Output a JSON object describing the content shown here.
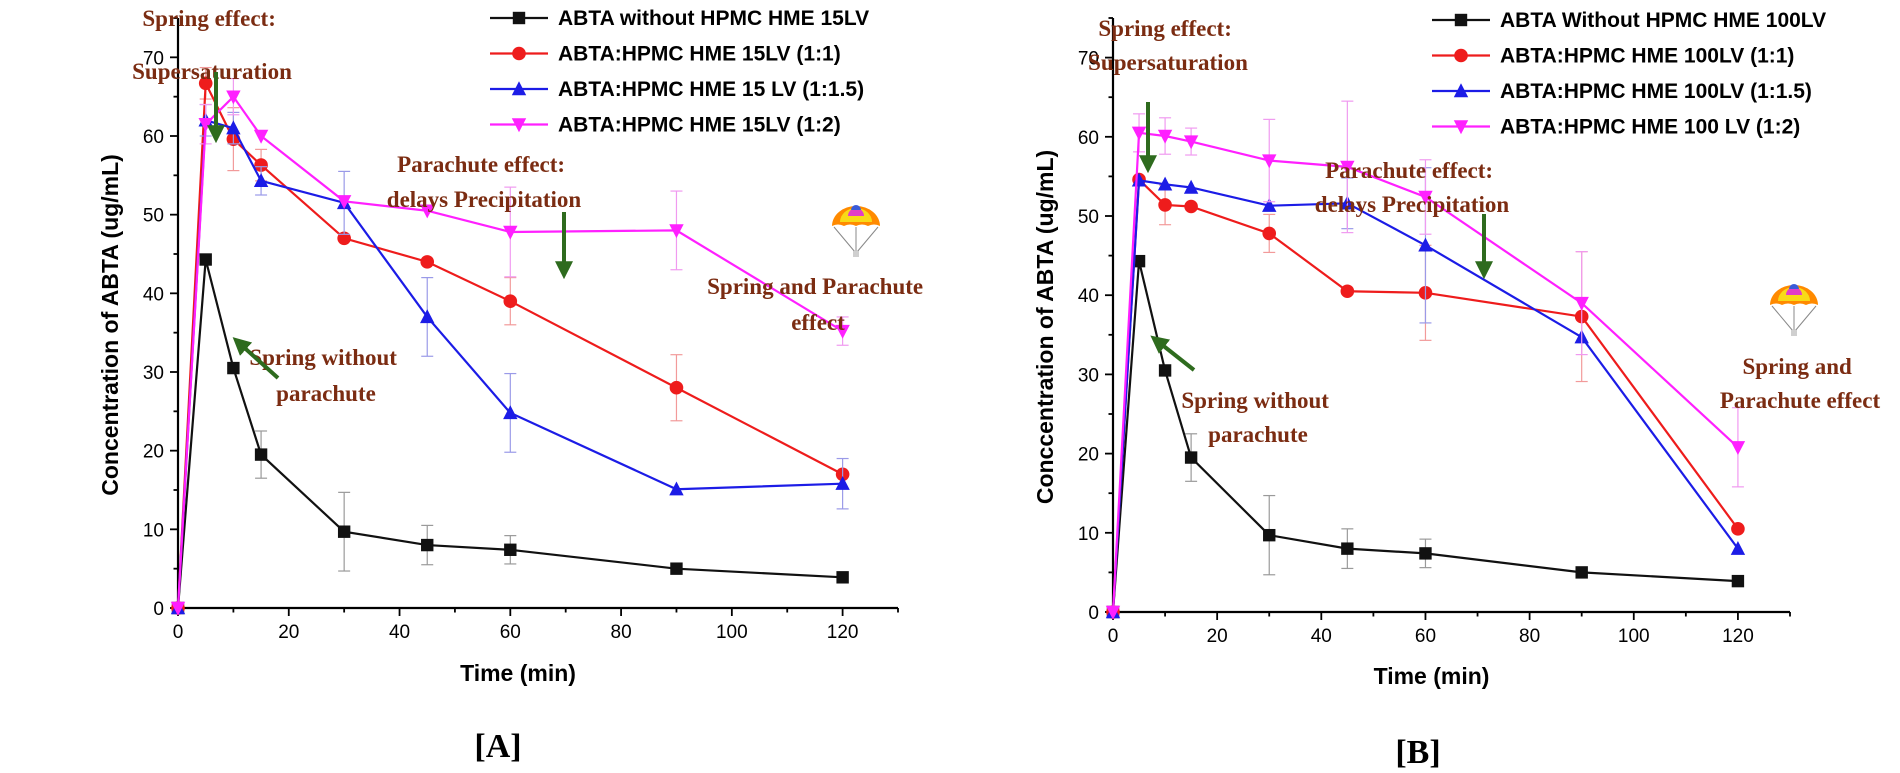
{
  "figure": {
    "colors": {
      "black": "#111111",
      "red": "#ee1c1c",
      "blue": "#1c1ce6",
      "magenta": "#ff20ff",
      "arrow": "#2e6b1e",
      "annotation": "#7b2c12",
      "error_black": "#9a9a9a",
      "error_red": "#f29a9a",
      "error_blue": "#9a9ae8",
      "error_magenta": "#f09af0"
    }
  },
  "chart_data": [
    {
      "panel": "A",
      "type": "line",
      "panel_label": "[A]",
      "xlabel": "Time (min)",
      "ylabel": "Concentration of ABTA (ug/mL)",
      "xlim": [
        0,
        130
      ],
      "ylim": [
        0,
        75
      ],
      "xticks": [
        0,
        20,
        40,
        60,
        80,
        100,
        120
      ],
      "yticks": [
        0,
        10,
        20,
        30,
        40,
        50,
        60,
        70
      ],
      "xtick_labels": [
        "0",
        "20",
        "40",
        "60",
        "80",
        "100",
        "120"
      ],
      "ytick_labels": [
        "0",
        "10",
        "20",
        "30",
        "40",
        "50",
        "60",
        "70"
      ],
      "legend_position": "top-right",
      "x": [
        0,
        5,
        10,
        15,
        30,
        45,
        60,
        90,
        120
      ],
      "series": [
        {
          "name": "ABTA without HPMC HME 15LV",
          "color": "black",
          "marker": "square",
          "values": [
            0,
            44.3,
            30.5,
            19.5,
            9.7,
            8.0,
            7.4,
            5.0,
            3.9
          ],
          "errors": [
            0,
            0,
            0,
            3.0,
            5.0,
            2.5,
            1.8,
            0,
            0
          ]
        },
        {
          "name": "ABTA:HPMC HME 15LV (1:1)",
          "color": "red",
          "marker": "circle",
          "values": [
            0,
            66.7,
            59.6,
            56.3,
            47.0,
            44.0,
            39.0,
            28.0,
            17.0
          ],
          "errors": [
            0,
            2.0,
            4.0,
            2.0,
            0,
            0,
            3.0,
            4.2,
            0
          ]
        },
        {
          "name": "ABTA:HPMC HME 15 LV (1:1.5)",
          "color": "blue",
          "marker": "triangle-up",
          "values": [
            0,
            62.0,
            61.0,
            54.3,
            51.5,
            37.0,
            24.8,
            15.1,
            15.8
          ],
          "errors": [
            0,
            2.0,
            2.0,
            1.8,
            4.0,
            5.0,
            5.0,
            0,
            3.2
          ]
        },
        {
          "name": "ABTA:HPMC HME 15LV (1:2)",
          "color": "magenta",
          "marker": "triangle-down",
          "values": [
            0,
            61.5,
            65.0,
            60.0,
            51.7,
            50.5,
            47.8,
            48.0,
            35.2
          ],
          "errors": [
            0,
            2.5,
            2.3,
            0,
            0,
            0,
            5.7,
            5.0,
            1.8
          ]
        }
      ],
      "annotations": [
        {
          "lines": [
            "Spring effect:",
            "Supersaturation"
          ]
        },
        {
          "lines": [
            "Parachute effect:",
            "delays Precipitation"
          ]
        },
        {
          "lines": [
            "Spring without",
            "parachute"
          ]
        },
        {
          "lines": [
            "Spring and Parachute",
            "effect"
          ]
        }
      ]
    },
    {
      "panel": "B",
      "type": "line",
      "panel_label": "[B]",
      "xlabel": "Time (min)",
      "ylabel": "Conccentration of ABTA (ug/mL)",
      "xlim": [
        0,
        130
      ],
      "ylim": [
        0,
        75
      ],
      "xticks": [
        0,
        20,
        40,
        60,
        80,
        100,
        120
      ],
      "yticks": [
        0,
        10,
        20,
        30,
        40,
        50,
        60,
        70
      ],
      "xtick_labels": [
        "0",
        "20",
        "40",
        "60",
        "80",
        "100",
        "120"
      ],
      "ytick_labels": [
        "0",
        "10",
        "20",
        "30",
        "40",
        "50",
        "60",
        "70"
      ],
      "legend_position": "top-right",
      "x": [
        0,
        5,
        10,
        15,
        30,
        45,
        60,
        90,
        120
      ],
      "series": [
        {
          "name": "ABTA Without HPMC HME 100LV",
          "color": "black",
          "marker": "square",
          "values": [
            0,
            44.3,
            30.5,
            19.5,
            9.7,
            8.0,
            7.4,
            5.0,
            3.9
          ],
          "errors": [
            0,
            0,
            0,
            3.0,
            5.0,
            2.5,
            1.8,
            0,
            0
          ]
        },
        {
          "name": "ABTA:HPMC HME 100LV (1:1)",
          "color": "red",
          "marker": "circle",
          "values": [
            0,
            54.6,
            51.4,
            51.2,
            47.8,
            40.5,
            40.3,
            37.3,
            10.5
          ],
          "errors": [
            0,
            0,
            2.5,
            0,
            2.4,
            0,
            6.0,
            8.2,
            0
          ]
        },
        {
          "name": "ABTA:HPMC HME 100LV (1:1.5)",
          "color": "blue",
          "marker": "triangle-up",
          "values": [
            0,
            54.5,
            54.0,
            53.6,
            51.3,
            51.6,
            46.3,
            34.7,
            8.0
          ],
          "errors": [
            0,
            0,
            0,
            0,
            0,
            3.2,
            9.8,
            0,
            0
          ]
        },
        {
          "name": "ABTA:HPMC HME 100 LV (1:2)",
          "color": "magenta",
          "marker": "triangle-down",
          "values": [
            0,
            60.5,
            60.1,
            59.4,
            57.0,
            56.2,
            52.4,
            39.0,
            20.8
          ],
          "errors": [
            0,
            2.4,
            2.3,
            1.7,
            5.2,
            8.3,
            4.7,
            6.5,
            5.0
          ]
        }
      ],
      "annotations": [
        {
          "lines": [
            "Spring effect:",
            "Supersaturation"
          ]
        },
        {
          "lines": [
            "Parachute effect:",
            "delays Precipitation"
          ]
        },
        {
          "lines": [
            "Spring without",
            "parachute"
          ]
        },
        {
          "lines": [
            "Spring and",
            "Parachute effect"
          ]
        }
      ]
    }
  ]
}
